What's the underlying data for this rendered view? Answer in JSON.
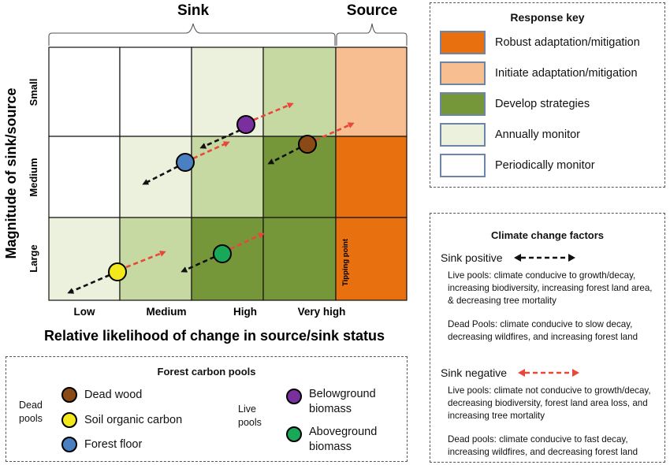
{
  "chart": {
    "sink_label": "Sink",
    "source_label": "Source",
    "y_axis_title": "Magnitude of sink/source",
    "x_axis_title": "Relative likelihood of change in source/sink status",
    "row_labels": [
      "Small",
      "Medium",
      "Large"
    ],
    "col_labels": [
      "Low",
      "Medium",
      "High",
      "Very high"
    ],
    "tipping_point": "Tipping point"
  },
  "chart_data": {
    "type": "heatmap",
    "rows": [
      "Small",
      "Medium",
      "Large"
    ],
    "columns": [
      "Low",
      "Medium",
      "High",
      "Very high",
      "Source"
    ],
    "cells": [
      [
        "Periodically monitor",
        "Periodically monitor",
        "Annually monitor",
        "Annually monitor",
        "Initiate adaptation/mitigation"
      ],
      [
        "Periodically monitor",
        "Annually monitor",
        "Annually monitor",
        "Develop strategies",
        "Robust adaptation/mitigation"
      ],
      [
        "Annually monitor",
        "Annually monitor",
        "Develop strategies",
        "Develop strategies",
        "Robust adaptation/mitigation"
      ]
    ],
    "pools": [
      {
        "name": "Belowground biomass",
        "color": "#7a2f9e",
        "row": "Small",
        "column": "High"
      },
      {
        "name": "Dead wood",
        "color": "#8a4a15",
        "row": "Medium",
        "column": "Very high"
      },
      {
        "name": "Forest floor",
        "color": "#4a7fc1",
        "row": "Medium",
        "column": "Medium"
      },
      {
        "name": "Aboveground biomass",
        "color": "#19a857",
        "row": "Large",
        "column": "High"
      },
      {
        "name": "Soil organic carbon",
        "color": "#f2e81c",
        "row": "Large",
        "column": "Low"
      }
    ]
  },
  "response_key": {
    "title": "Response key",
    "items": [
      {
        "label": "Robust adaptation/mitigation",
        "color": "#e8700e"
      },
      {
        "label": "Initiate adaptation/mitigation",
        "color": "#f7be91"
      },
      {
        "label": "Develop strategies",
        "color": "#76963a"
      },
      {
        "label": "Annually monitor",
        "color": "#ebf1dd"
      },
      {
        "label": "Periodically monitor",
        "color": "#ffffff"
      }
    ]
  },
  "climate": {
    "title": "Climate change factors",
    "sink_positive": "Sink positive",
    "pos_live": "Live pools: climate conducive to growth/decay, increasing biodiversity, increasing forest land area, & decreasing tree mortality",
    "pos_dead": "Dead Pools: climate conducive to slow decay, decreasing wildfires, and  increasing forest land",
    "sink_negative": "Sink negative",
    "neg_live": "Live pools: climate not conducive to growth/decay, decreasing biodiversity, forest land area loss,  and increasing tree mortality",
    "neg_dead": "Dead pools: climate conducive to fast decay, increasing wildfires, and  decreasing forest land"
  },
  "pools_legend": {
    "title": "Forest carbon pools",
    "dead_group": "Dead pools",
    "live_group": "Live pools",
    "dead_items": [
      {
        "label": "Dead wood",
        "color": "#8a4a15"
      },
      {
        "label": "Soil organic carbon",
        "color": "#f2e81c"
      },
      {
        "label": "Forest floor",
        "color": "#4a7fc1"
      }
    ],
    "live_items": [
      {
        "label": "Belowground biomass",
        "color": "#7a2f9e"
      },
      {
        "label": "Aboveground biomass",
        "color": "#19a857"
      }
    ]
  }
}
